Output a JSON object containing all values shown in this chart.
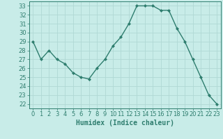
{
  "x": [
    0,
    1,
    2,
    3,
    4,
    5,
    6,
    7,
    8,
    9,
    10,
    11,
    12,
    13,
    14,
    15,
    16,
    17,
    18,
    19,
    20,
    21,
    22,
    23
  ],
  "y": [
    29,
    27,
    28,
    27,
    26.5,
    25.5,
    25,
    24.8,
    26,
    27,
    28.5,
    29.5,
    31,
    33,
    33,
    33,
    32.5,
    32.5,
    30.5,
    29,
    27,
    25,
    23,
    22
  ],
  "line_color": "#2e7d6e",
  "marker": "D",
  "markersize": 2.0,
  "linewidth": 1.0,
  "bg_color": "#c8ece8",
  "grid_color": "#b0d8d4",
  "xlabel": "Humidex (Indice chaleur)",
  "xlabel_fontsize": 7,
  "tick_fontsize": 6,
  "ylim": [
    21.5,
    33.5
  ],
  "xlim": [
    -0.5,
    23.5
  ],
  "yticks": [
    22,
    23,
    24,
    25,
    26,
    27,
    28,
    29,
    30,
    31,
    32,
    33
  ],
  "xticks": [
    0,
    1,
    2,
    3,
    4,
    5,
    6,
    7,
    8,
    9,
    10,
    11,
    12,
    13,
    14,
    15,
    16,
    17,
    18,
    19,
    20,
    21,
    22,
    23
  ]
}
